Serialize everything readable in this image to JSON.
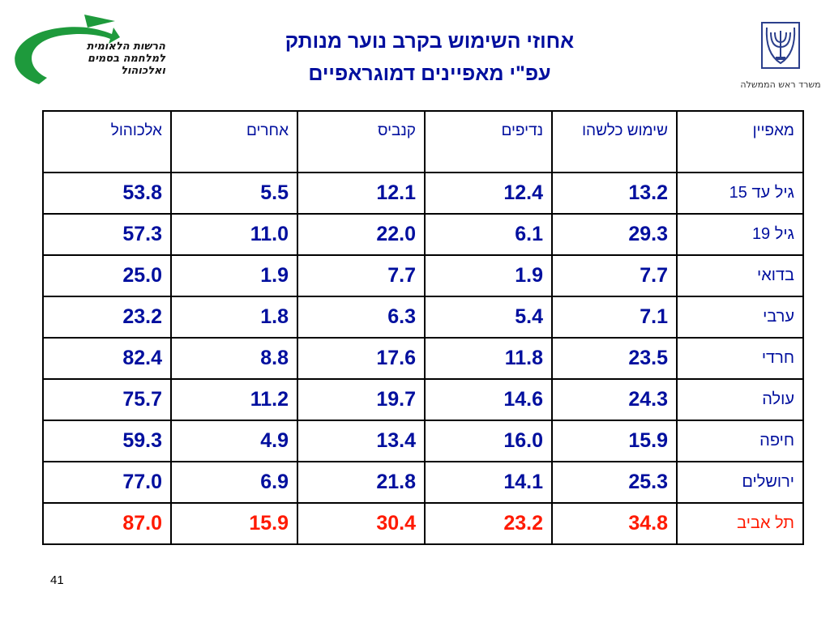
{
  "logo_left": {
    "lines": [
      "הרשות הלאומית",
      "למלחמה בסמים",
      "ואלכוהול"
    ]
  },
  "logo_right": {
    "emblem_text": "ישראל",
    "caption": "משרד ראש הממשלה"
  },
  "title": {
    "line1": "אחוזי השימוש בקרב נוער  מנותק",
    "line2": "עפ\"י מאפיינים דמוגראפיים"
  },
  "table": {
    "headers": [
      "מאפיין",
      "שימוש כלשהו",
      "נדיפים",
      "קנביס",
      "אחרים",
      "אלכוהול"
    ],
    "rows": [
      {
        "label": "גיל עד 15",
        "values": [
          "13.2",
          "12.4",
          "12.1",
          "5.5",
          "53.8"
        ]
      },
      {
        "label": "גיל  19",
        "values": [
          "29.3",
          "6.1",
          "22.0",
          "11.0",
          "57.3"
        ]
      },
      {
        "label": "בדואי",
        "values": [
          "7.7",
          "1.9",
          "7.7",
          "1.9",
          "25.0"
        ]
      },
      {
        "label": "ערבי",
        "values": [
          "7.1",
          "5.4",
          "6.3",
          "1.8",
          "23.2"
        ]
      },
      {
        "label": "חרדי",
        "values": [
          "23.5",
          "11.8",
          "17.6",
          "8.8",
          "82.4"
        ]
      },
      {
        "label": "עולה",
        "values": [
          "24.3",
          "14.6",
          "19.7",
          "11.2",
          "75.7"
        ]
      },
      {
        "label": "חיפה",
        "values": [
          "15.9",
          "16.0",
          "13.4",
          "4.9",
          "59.3"
        ]
      },
      {
        "label": "ירושלים",
        "values": [
          "25.3",
          "14.1",
          "21.8",
          "6.9",
          "77.0"
        ]
      },
      {
        "label": "תל אביב",
        "values": [
          "34.8",
          "23.2",
          "30.4",
          "15.9",
          "87.0"
        ]
      }
    ],
    "highlight_row_index": 8
  },
  "colors": {
    "text_blue": "#000f9e",
    "highlight_red": "#ff1a00",
    "logo_green": "#1e9a3c"
  },
  "page_number": "41"
}
